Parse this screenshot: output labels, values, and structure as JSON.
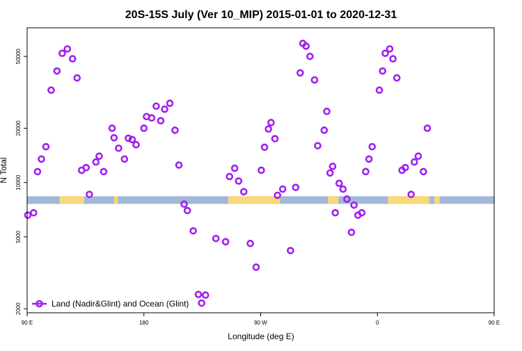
{
  "chart_data": {
    "type": "scatter",
    "title": "20S-15S July (Ver 10_MIP)   2015-01-01 to 2020-12-31",
    "xlabel": "Longitude (deg E)",
    "ylabel": "N Total",
    "y_scale": "log",
    "xlim": [
      90,
      450
    ],
    "ylim": [
      1900,
      72000
    ],
    "x_ticks": [
      {
        "value": 90,
        "label": "90 E"
      },
      {
        "value": 180,
        "label": "180"
      },
      {
        "value": 270,
        "label": "90 W"
      },
      {
        "value": 360,
        "label": "0"
      },
      {
        "value": 450,
        "label": "90 E"
      },
      {
        "value": 540,
        "label": "180"
      }
    ],
    "y_ticks": [
      {
        "value": 2000,
        "label": "2000"
      },
      {
        "value": 5000,
        "label": "5000"
      },
      {
        "value": 10000,
        "label": "10000"
      },
      {
        "value": 20000,
        "label": "20000"
      },
      {
        "value": 50000,
        "label": "50000"
      }
    ],
    "grid": false,
    "legend_position": "bottom-left",
    "surface_band": {
      "value": 8000,
      "ocean_color": "#a3b8d8",
      "land_color": "#f7d87a",
      "land_ranges": [
        [
          115,
          134
        ],
        [
          157,
          160
        ],
        [
          245,
          285
        ],
        [
          322,
          330
        ],
        [
          368,
          400
        ],
        [
          404,
          408
        ],
        [
          475,
          500
        ],
        [
          503,
          506
        ]
      ]
    },
    "series": [
      {
        "name": "Land (Nadir&Glint) and Ocean (Glint)",
        "color": "#a020f0",
        "points": [
          {
            "x": 90.5,
            "y": 6600
          },
          {
            "x": 95,
            "y": 6800
          },
          {
            "x": 98,
            "y": 11500
          },
          {
            "x": 101,
            "y": 13500
          },
          {
            "x": 104.5,
            "y": 15800
          },
          {
            "x": 108.5,
            "y": 32500
          },
          {
            "x": 113,
            "y": 41500
          },
          {
            "x": 117,
            "y": 52000
          },
          {
            "x": 121,
            "y": 55000
          },
          {
            "x": 125,
            "y": 48500
          },
          {
            "x": 128.5,
            "y": 38000
          },
          {
            "x": 132,
            "y": 11700
          },
          {
            "x": 135.5,
            "y": 12100
          },
          {
            "x": 138,
            "y": 8600
          },
          {
            "x": 143,
            "y": 13000
          },
          {
            "x": 145.5,
            "y": 14000
          },
          {
            "x": 149,
            "y": 11500
          },
          {
            "x": 155.5,
            "y": 20000
          },
          {
            "x": 157,
            "y": 17700
          },
          {
            "x": 160.5,
            "y": 15500
          },
          {
            "x": 165,
            "y": 13500
          },
          {
            "x": 168,
            "y": 17600
          },
          {
            "x": 171,
            "y": 17300
          },
          {
            "x": 174,
            "y": 16200
          },
          {
            "x": 180,
            "y": 20000
          },
          {
            "x": 182,
            "y": 23200
          },
          {
            "x": 186,
            "y": 22800
          },
          {
            "x": 189.5,
            "y": 26500
          },
          {
            "x": 193,
            "y": 22000
          },
          {
            "x": 196,
            "y": 25500
          },
          {
            "x": 200,
            "y": 27500
          },
          {
            "x": 204,
            "y": 19500
          },
          {
            "x": 207,
            "y": 12500
          },
          {
            "x": 211,
            "y": 7600
          },
          {
            "x": 213.5,
            "y": 7000
          },
          {
            "x": 218,
            "y": 5400
          },
          {
            "x": 222,
            "y": 2400
          },
          {
            "x": 224.5,
            "y": 2150
          },
          {
            "x": 227.5,
            "y": 2380
          },
          {
            "x": 235.5,
            "y": 4900
          },
          {
            "x": 243,
            "y": 4700
          },
          {
            "x": 246,
            "y": 10800
          },
          {
            "x": 250,
            "y": 12000
          },
          {
            "x": 253,
            "y": 10200
          },
          {
            "x": 257,
            "y": 8900
          },
          {
            "x": 262,
            "y": 4600
          },
          {
            "x": 266.5,
            "y": 3400
          },
          {
            "x": 270.5,
            "y": 11700
          },
          {
            "x": 273,
            "y": 15700
          },
          {
            "x": 276,
            "y": 19800
          },
          {
            "x": 278,
            "y": 21500
          },
          {
            "x": 281,
            "y": 17500
          },
          {
            "x": 283,
            "y": 8500
          },
          {
            "x": 287,
            "y": 9200
          },
          {
            "x": 293,
            "y": 4200
          },
          {
            "x": 297,
            "y": 9400
          },
          {
            "x": 300.5,
            "y": 40500
          },
          {
            "x": 302.5,
            "y": 59000
          },
          {
            "x": 305,
            "y": 57000
          },
          {
            "x": 308,
            "y": 50000
          },
          {
            "x": 311.5,
            "y": 37000
          },
          {
            "x": 314,
            "y": 16000
          },
          {
            "x": 319,
            "y": 19500
          },
          {
            "x": 321,
            "y": 24800
          },
          {
            "x": 323.5,
            "y": 11300
          },
          {
            "x": 325.5,
            "y": 12300
          },
          {
            "x": 327.5,
            "y": 6800
          },
          {
            "x": 330.5,
            "y": 9900
          },
          {
            "x": 333.5,
            "y": 9200
          },
          {
            "x": 336.5,
            "y": 8100
          },
          {
            "x": 340,
            "y": 5300
          },
          {
            "x": 342,
            "y": 7500
          },
          {
            "x": 345,
            "y": 6600
          },
          {
            "x": 348,
            "y": 6800
          },
          {
            "x": 351,
            "y": 11500
          },
          {
            "x": 353.5,
            "y": 13500
          },
          {
            "x": 356,
            "y": 15800
          },
          {
            "x": 361.5,
            "y": 32500
          },
          {
            "x": 364,
            "y": 41500
          },
          {
            "x": 366,
            "y": 52000
          },
          {
            "x": 369.5,
            "y": 55000
          },
          {
            "x": 372,
            "y": 48500
          },
          {
            "x": 375,
            "y": 38000
          },
          {
            "x": 379,
            "y": 11700
          },
          {
            "x": 381.5,
            "y": 12100
          },
          {
            "x": 386,
            "y": 8600
          },
          {
            "x": 388.5,
            "y": 13000
          },
          {
            "x": 391.5,
            "y": 14000
          },
          {
            "x": 395.5,
            "y": 11500
          },
          {
            "x": 398.5,
            "y": 20000
          }
        ]
      }
    ]
  }
}
